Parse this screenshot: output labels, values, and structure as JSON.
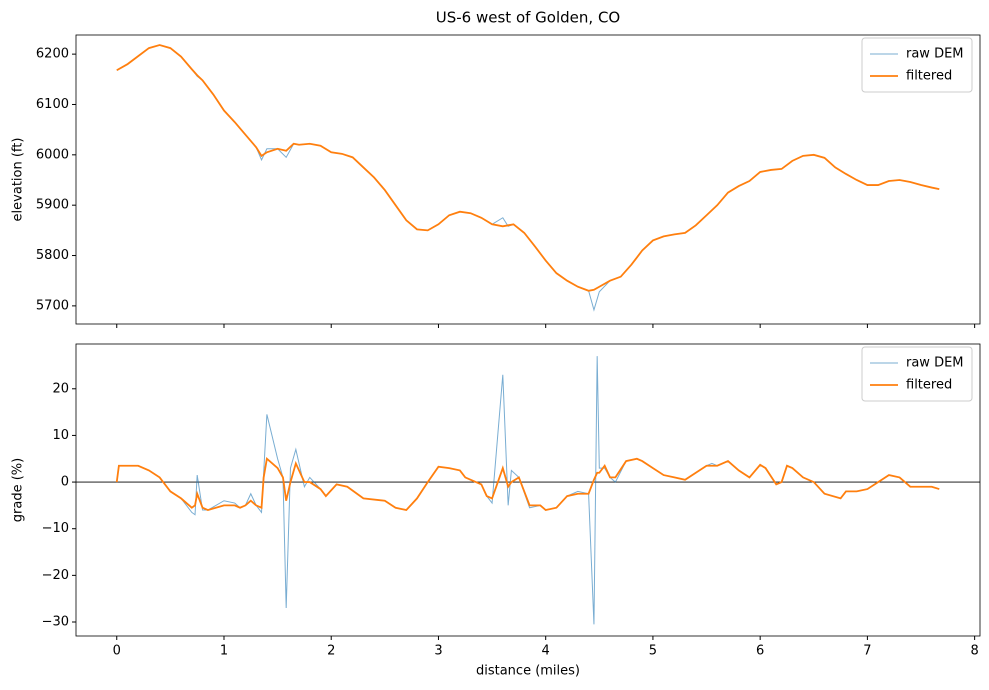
{
  "chart_data": [
    {
      "type": "line",
      "title": "US-6 west of Golden, CO",
      "y_label": "elevation (ft)",
      "x": [
        0,
        0.1,
        0.2,
        0.3,
        0.4,
        0.5,
        0.6,
        0.7,
        0.75,
        0.8,
        0.9,
        1.0,
        1.1,
        1.2,
        1.3,
        1.35,
        1.4,
        1.5,
        1.58,
        1.65,
        1.7,
        1.8,
        1.9,
        2.0,
        2.1,
        2.2,
        2.3,
        2.4,
        2.5,
        2.6,
        2.7,
        2.8,
        2.9,
        3.0,
        3.1,
        3.2,
        3.3,
        3.4,
        3.5,
        3.6,
        3.65,
        3.7,
        3.8,
        3.9,
        4.0,
        4.1,
        4.2,
        4.3,
        4.4,
        4.45,
        4.5,
        4.6,
        4.7,
        4.8,
        4.9,
        5.0,
        5.1,
        5.2,
        5.3,
        5.4,
        5.5,
        5.6,
        5.7,
        5.8,
        5.9,
        6.0,
        6.1,
        6.2,
        6.3,
        6.4,
        6.5,
        6.6,
        6.7,
        6.8,
        6.9,
        7.0,
        7.1,
        7.2,
        7.3,
        7.4,
        7.5,
        7.6,
        7.67
      ],
      "series": [
        {
          "name": "raw DEM",
          "color": "#1f77b4",
          "alpha": 0.6,
          "width": 1,
          "values": [
            6168,
            6180,
            6196,
            6212,
            6218,
            6212,
            6195,
            6170,
            6156,
            6148,
            6120,
            6088,
            6065,
            6040,
            6015,
            5990,
            6012,
            6012,
            5995,
            6022,
            6020,
            6022,
            6018,
            6005,
            6002,
            5995,
            5975,
            5955,
            5930,
            5900,
            5870,
            5852,
            5850,
            5862,
            5880,
            5887,
            5884,
            5875,
            5862,
            5875,
            5858,
            5862,
            5845,
            5818,
            5790,
            5765,
            5750,
            5738,
            5730,
            5692,
            5728,
            5750,
            5758,
            5782,
            5810,
            5830,
            5838,
            5842,
            5845,
            5860,
            5880,
            5900,
            5925,
            5938,
            5948,
            5966,
            5970,
            5972,
            5988,
            5998,
            6000,
            5994,
            5975,
            5962,
            5950,
            5940,
            5940,
            5948,
            5950,
            5946,
            5940,
            5935,
            5932
          ]
        },
        {
          "name": "filtered",
          "color": "#ff7f0e",
          "alpha": 1,
          "width": 1.8,
          "values": [
            6168,
            6180,
            6196,
            6212,
            6218,
            6212,
            6195,
            6170,
            6158,
            6148,
            6120,
            6088,
            6065,
            6040,
            6015,
            5998,
            6005,
            6012,
            6008,
            6022,
            6020,
            6022,
            6018,
            6005,
            6002,
            5995,
            5975,
            5955,
            5930,
            5900,
            5870,
            5852,
            5850,
            5862,
            5880,
            5887,
            5884,
            5875,
            5862,
            5858,
            5860,
            5862,
            5845,
            5818,
            5790,
            5765,
            5750,
            5738,
            5730,
            5732,
            5738,
            5750,
            5758,
            5782,
            5810,
            5830,
            5838,
            5842,
            5845,
            5860,
            5880,
            5900,
            5925,
            5938,
            5948,
            5966,
            5970,
            5972,
            5988,
            5998,
            6000,
            5994,
            5975,
            5962,
            5950,
            5940,
            5940,
            5948,
            5950,
            5946,
            5940,
            5935,
            5932
          ]
        }
      ],
      "xlim": [
        -0.38,
        8.05
      ],
      "xticks": [
        0,
        1,
        2,
        3,
        4,
        5,
        6,
        7,
        8
      ],
      "ylim": [
        5664,
        6238
      ],
      "yticks": [
        5700,
        5800,
        5900,
        6000,
        6100,
        6200
      ],
      "legend": "upper right"
    },
    {
      "type": "line",
      "x_label": "distance (miles)",
      "y_label": "grade (%)",
      "x": [
        0,
        0.02,
        0.2,
        0.3,
        0.4,
        0.5,
        0.6,
        0.7,
        0.73,
        0.75,
        0.8,
        0.85,
        1.0,
        1.1,
        1.15,
        1.2,
        1.25,
        1.3,
        1.35,
        1.37,
        1.4,
        1.5,
        1.55,
        1.58,
        1.62,
        1.67,
        1.75,
        1.8,
        1.9,
        1.95,
        2.05,
        2.15,
        2.3,
        2.5,
        2.6,
        2.7,
        2.8,
        2.9,
        3.0,
        3.1,
        3.2,
        3.25,
        3.4,
        3.45,
        3.5,
        3.6,
        3.65,
        3.68,
        3.75,
        3.85,
        3.95,
        4.0,
        4.1,
        4.2,
        4.3,
        4.4,
        4.45,
        4.48,
        4.5,
        4.55,
        4.6,
        4.65,
        4.75,
        4.85,
        4.9,
        5.0,
        5.1,
        5.2,
        5.3,
        5.4,
        5.5,
        5.55,
        5.6,
        5.7,
        5.8,
        5.9,
        6.0,
        6.05,
        6.15,
        6.2,
        6.25,
        6.3,
        6.4,
        6.5,
        6.6,
        6.75,
        6.8,
        6.9,
        7.0,
        7.1,
        7.2,
        7.3,
        7.4,
        7.5,
        7.6,
        7.67
      ],
      "series": [
        {
          "name": "raw DEM",
          "color": "#1f77b4",
          "alpha": 0.6,
          "width": 1,
          "values": [
            0,
            3.5,
            3.5,
            2.5,
            1,
            -2,
            -3.5,
            -6.5,
            -7,
            1.5,
            -6,
            -6,
            -4,
            -4.5,
            -5.5,
            -5,
            -2.5,
            -5,
            -6.5,
            2,
            14.5,
            5,
            1,
            -27,
            3,
            7,
            -1,
            1,
            -1.5,
            -3,
            -0.5,
            -1,
            -3.5,
            -4,
            -5.5,
            -6,
            -3.5,
            0,
            3.3,
            3,
            2.5,
            1,
            -0.5,
            -3,
            -4.5,
            23,
            -5,
            2.5,
            1,
            -5.5,
            -5,
            -6,
            -5.5,
            -3,
            -2,
            -2.5,
            -30.5,
            27,
            3,
            3,
            1,
            0,
            4.5,
            5,
            4.5,
            3,
            1.5,
            1,
            0.5,
            2,
            3.5,
            4,
            3.5,
            4.5,
            2.5,
            1,
            3.7,
            3,
            -0.5,
            0,
            3.5,
            3,
            1,
            0,
            -2.5,
            -3.5,
            -2,
            -2,
            -1.5,
            0,
            1.5,
            1,
            -1,
            -1,
            -1,
            -1.5
          ]
        },
        {
          "name": "filtered",
          "color": "#ff7f0e",
          "alpha": 1,
          "width": 1.8,
          "values": [
            0,
            3.5,
            3.5,
            2.5,
            1,
            -2,
            -3.5,
            -5.5,
            -5,
            -2.5,
            -5.5,
            -6,
            -5,
            -5,
            -5.5,
            -5,
            -4,
            -5,
            -5.5,
            1,
            5,
            3,
            1,
            -4,
            0,
            4,
            0,
            0,
            -1.5,
            -3,
            -0.5,
            -1,
            -3.5,
            -4,
            -5.5,
            -6,
            -3.5,
            0,
            3.3,
            3,
            2.5,
            1,
            -0.5,
            -3,
            -3.5,
            3,
            -1,
            0,
            1,
            -5,
            -5,
            -6,
            -5.5,
            -3,
            -2.5,
            -2.5,
            0.5,
            2,
            2,
            3.5,
            1,
            1,
            4.5,
            5,
            4.5,
            3,
            1.5,
            1,
            0.5,
            2,
            3.5,
            3.5,
            3.5,
            4.5,
            2.5,
            1,
            3.7,
            3,
            -0.5,
            0,
            3.5,
            3,
            1,
            0,
            -2.5,
            -3.5,
            -2,
            -2,
            -1.5,
            0,
            1.5,
            1,
            -1,
            -1,
            -1,
            -1.5
          ]
        }
      ],
      "hline": 0,
      "xlim": [
        -0.38,
        8.05
      ],
      "xticks": [
        0,
        1,
        2,
        3,
        4,
        5,
        6,
        7,
        8
      ],
      "ylim": [
        -33,
        29.6
      ],
      "yticks": [
        {
          "value": -30,
          "label": "−30"
        },
        {
          "value": -20,
          "label": "−20"
        },
        {
          "value": -10,
          "label": "−10"
        },
        0,
        10,
        20
      ],
      "legend": "upper right"
    }
  ]
}
